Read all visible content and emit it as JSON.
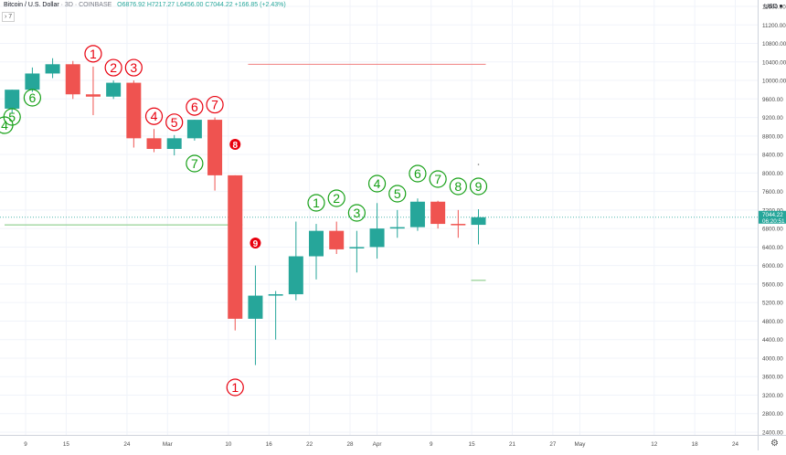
{
  "header": {
    "symbol": "Bitcoin / U.S. Dollar",
    "interval": "3D",
    "exchange": "COINBASE",
    "o": "O6876.92",
    "h": "H7217.27",
    "l": "L6456.00",
    "c": "C7044.22",
    "change": "+166.85 (+2.43%)"
  },
  "collapse_label": "7",
  "currency_label": "USD",
  "colors": {
    "up": "#26a69a",
    "down": "#ef5350",
    "count_up": "#16a016",
    "count_down": "#e8000e",
    "price_badge": "#26a69a",
    "grid": "#f0f3fa"
  },
  "chart_data": {
    "type": "candlestick",
    "y_axis": {
      "ticks": [
        "11600.00",
        "11200.00",
        "10800.00",
        "10400.00",
        "10000.00",
        "9600.00",
        "9200.00",
        "8800.00",
        "8400.00",
        "8000.00",
        "7600.00",
        "7200.00",
        "6800.00",
        "6400.00",
        "6000.00",
        "5600.00",
        "5200.00",
        "4800.00",
        "4400.00",
        "4000.00",
        "3600.00",
        "3200.00",
        "2800.00",
        "2400.00"
      ],
      "range": [
        2200,
        11900
      ]
    },
    "x_axis": {
      "ticks": [
        "9",
        "15",
        "24",
        "Mar",
        "10",
        "16",
        "22",
        "28",
        "Apr",
        "9",
        "15",
        "21",
        "27",
        "May",
        "12",
        "18",
        "24"
      ]
    },
    "candles": [
      {
        "date": "Feb 7",
        "o": 9390,
        "h": 9800,
        "l": 9300,
        "c": 9800
      },
      {
        "date": "Feb 10",
        "o": 9800,
        "h": 10280,
        "l": 9750,
        "c": 10150
      },
      {
        "date": "Feb 13",
        "o": 10150,
        "h": 10480,
        "l": 10050,
        "c": 10350
      },
      {
        "date": "Feb 16",
        "o": 10350,
        "h": 10420,
        "l": 9600,
        "c": 9700
      },
      {
        "date": "Feb 19",
        "o": 9700,
        "h": 10300,
        "l": 9250,
        "c": 9650
      },
      {
        "date": "Feb 22",
        "o": 9650,
        "h": 10000,
        "l": 9600,
        "c": 9950
      },
      {
        "date": "Feb 25",
        "o": 9950,
        "h": 10000,
        "l": 8550,
        "c": 8750
      },
      {
        "date": "Feb 28",
        "o": 8750,
        "h": 8950,
        "l": 8450,
        "c": 8520
      },
      {
        "date": "Mar 2",
        "o": 8520,
        "h": 8820,
        "l": 8380,
        "c": 8750
      },
      {
        "date": "Mar 5",
        "o": 8750,
        "h": 9150,
        "l": 8700,
        "c": 9150
      },
      {
        "date": "Mar 8",
        "o": 9150,
        "h": 9200,
        "l": 7620,
        "c": 7950
      },
      {
        "date": "Mar 11",
        "o": 7950,
        "h": 7950,
        "l": 4600,
        "c": 4850
      },
      {
        "date": "Mar 14",
        "o": 4850,
        "h": 6000,
        "l": 3850,
        "c": 5350
      },
      {
        "date": "Mar 17",
        "o": 5350,
        "h": 5450,
        "l": 4400,
        "c": 5380
      },
      {
        "date": "Mar 20",
        "o": 5380,
        "h": 6950,
        "l": 5250,
        "c": 6200
      },
      {
        "date": "Mar 23",
        "o": 6200,
        "h": 6900,
        "l": 5700,
        "c": 6750
      },
      {
        "date": "Mar 26",
        "o": 6750,
        "h": 6950,
        "l": 6250,
        "c": 6350
      },
      {
        "date": "Mar 29",
        "o": 6400,
        "h": 6750,
        "l": 5850,
        "c": 6400
      },
      {
        "date": "Apr 1",
        "o": 6400,
        "h": 7350,
        "l": 6150,
        "c": 6800
      },
      {
        "date": "Apr 4",
        "o": 6800,
        "h": 7200,
        "l": 6600,
        "c": 6830
      },
      {
        "date": "Apr 7",
        "o": 6830,
        "h": 7450,
        "l": 6750,
        "c": 7380
      },
      {
        "date": "Apr 10",
        "o": 7380,
        "h": 7400,
        "l": 6800,
        "c": 6900
      },
      {
        "date": "Apr 13",
        "o": 6900,
        "h": 7200,
        "l": 6600,
        "c": 6880
      },
      {
        "date": "Apr 16",
        "o": 6880,
        "h": 7217,
        "l": 6456,
        "c": 7044
      }
    ],
    "td_counts": [
      {
        "label": "4",
        "color": "up",
        "date": "Feb 4",
        "pos": "below"
      },
      {
        "label": "5",
        "color": "up",
        "date": "Feb 7",
        "pos": "below"
      },
      {
        "label": "6",
        "color": "up",
        "date": "Feb 10",
        "pos": "below"
      },
      {
        "label": "1",
        "color": "down",
        "date": "Feb 19",
        "pos": "above"
      },
      {
        "label": "2",
        "color": "down",
        "date": "Feb 22",
        "pos": "above"
      },
      {
        "label": "3",
        "color": "down",
        "date": "Feb 25",
        "pos": "above"
      },
      {
        "label": "4",
        "color": "down",
        "date": "Feb 28",
        "pos": "above"
      },
      {
        "label": "5",
        "color": "down",
        "date": "Mar 2",
        "pos": "above"
      },
      {
        "label": "6",
        "color": "down",
        "date": "Mar 5",
        "pos": "above"
      },
      {
        "label": "7",
        "color": "down",
        "date": "Mar 8",
        "pos": "above"
      },
      {
        "label": "7",
        "color": "up",
        "date": "Mar 5",
        "pos": "below"
      },
      {
        "label": "8",
        "color": "down",
        "date": "Mar 11",
        "pos": "above",
        "filled": true
      },
      {
        "label": "9",
        "color": "down",
        "date": "Mar 14",
        "pos": "above",
        "filled": true
      },
      {
        "label": "1",
        "color": "down",
        "date": "Mar 11",
        "pos": "below"
      },
      {
        "label": "1",
        "color": "up",
        "date": "Mar 23",
        "pos": "above"
      },
      {
        "label": "2",
        "color": "up",
        "date": "Mar 26",
        "pos": "above"
      },
      {
        "label": "3",
        "color": "up",
        "date": "Mar 29",
        "pos": "above"
      },
      {
        "label": "4",
        "color": "up",
        "date": "Apr 1",
        "pos": "above"
      },
      {
        "label": "5",
        "color": "up",
        "date": "Apr 4",
        "pos": "above"
      },
      {
        "label": "6",
        "color": "up",
        "date": "Apr 7",
        "pos": "above"
      },
      {
        "label": "7",
        "color": "up",
        "date": "Apr 10",
        "pos": "above"
      },
      {
        "label": "8",
        "color": "up",
        "date": "Apr 13",
        "pos": "above"
      },
      {
        "label": "9",
        "color": "up",
        "date": "Apr 16",
        "pos": "above"
      }
    ],
    "level_lines": [
      {
        "price": 10350,
        "color": "down",
        "from": "Mar 14",
        "to": "Apr 16"
      },
      {
        "price": 6880,
        "color": "up",
        "from": "Feb 4",
        "to": "Mar 11"
      },
      {
        "price": 5680,
        "color": "up",
        "from": "Apr 16",
        "to": "Apr 16"
      }
    ],
    "last_price": {
      "price": "7044.22",
      "countdown": "06:20:51",
      "value": 7044.22
    },
    "grid": true
  }
}
